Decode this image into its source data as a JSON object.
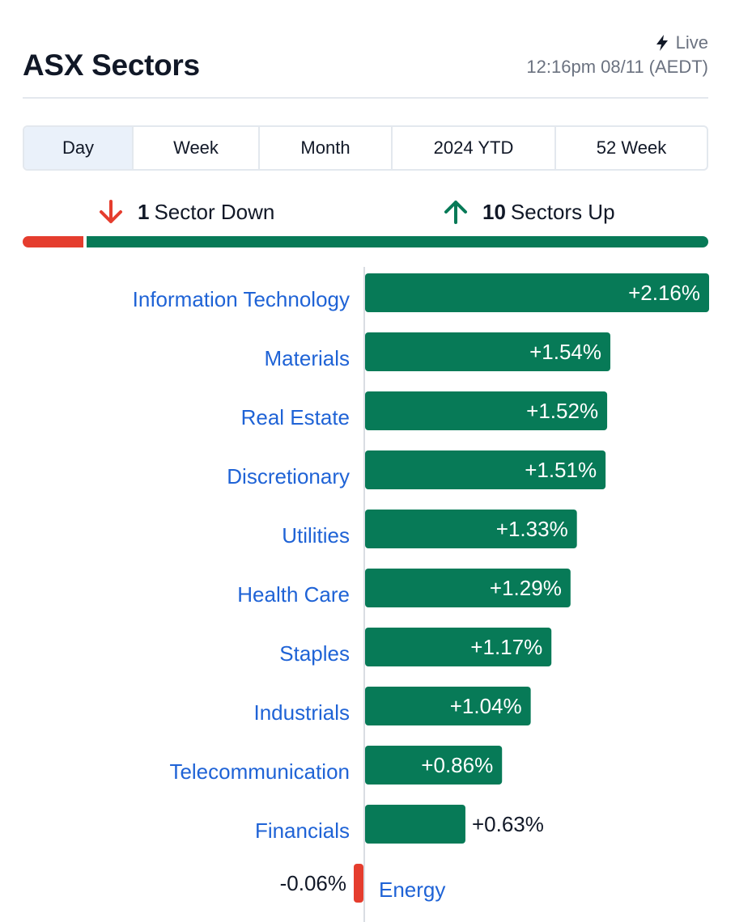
{
  "header": {
    "title": "ASX Sectors",
    "live_label": "Live",
    "timestamp": "12:16pm 08/11 (AEDT)"
  },
  "tabs": [
    {
      "label": "Day",
      "active": true
    },
    {
      "label": "Week",
      "active": false
    },
    {
      "label": "Month",
      "active": false
    },
    {
      "label": "2024 YTD",
      "active": false
    },
    {
      "label": "52 Week",
      "active": false
    }
  ],
  "summary": {
    "down_count": "1",
    "down_label": "Sector Down",
    "up_count": "10",
    "up_label": "Sectors Up"
  },
  "colors": {
    "up": "#077a57",
    "down": "#e53d2e",
    "link": "#1f63d6"
  },
  "chart_data": {
    "type": "bar",
    "orientation": "horizontal",
    "categories": [
      "Information Technology",
      "Materials",
      "Real Estate",
      "Discretionary",
      "Utilities",
      "Health Care",
      "Staples",
      "Industrials",
      "Telecommunication",
      "Financials",
      "Energy"
    ],
    "values": [
      2.16,
      1.54,
      1.52,
      1.51,
      1.33,
      1.29,
      1.17,
      1.04,
      0.86,
      0.63,
      -0.06
    ],
    "labels": [
      "+2.16%",
      "+1.54%",
      "+1.52%",
      "+1.51%",
      "+1.33%",
      "+1.29%",
      "+1.17%",
      "+1.04%",
      "+0.86%",
      "+0.63%",
      "-0.06%"
    ],
    "unit": "%"
  }
}
